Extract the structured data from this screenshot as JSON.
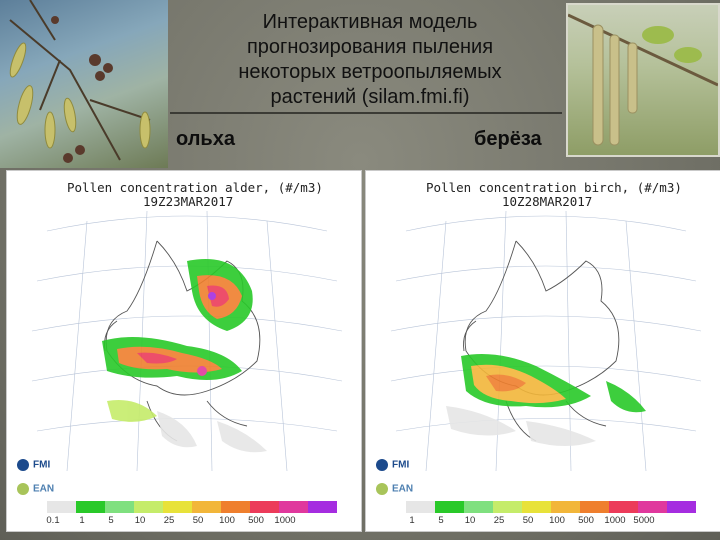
{
  "slide": {
    "title_lines": [
      "Интерактивная модель",
      "прогнозирования пыления",
      "некоторых ветроопыляемых",
      "растений (silam.fmi.fi)"
    ],
    "left_label": "ольха",
    "right_label": "берёза"
  },
  "maps": [
    {
      "title_line1": "Pollen concentration alder, (#/m3)",
      "title_line2": "19Z23MAR2017",
      "logos": [
        "FMI",
        "EAN"
      ],
      "legend_ticks": [
        "0.1",
        "1",
        "5",
        "10",
        "25",
        "50",
        "100",
        "500",
        "1000"
      ],
      "legend_colors": [
        "#e6e6e6",
        "#29c929",
        "#7fe07f",
        "#c5ec6a",
        "#e8e23a",
        "#f2b63a",
        "#ef7f2e",
        "#ec3b5a",
        "#e0389d",
        "#a52de0"
      ]
    },
    {
      "title_line1": "Pollen concentration birch, (#/m3)",
      "title_line2": "10Z28MAR2017",
      "logos": [
        "FMI",
        "EAN"
      ],
      "legend_ticks": [
        "1",
        "5",
        "10",
        "25",
        "50",
        "100",
        "500",
        "1000",
        "5000"
      ],
      "legend_colors": [
        "#e6e6e6",
        "#29c929",
        "#7fe07f",
        "#c5ec6a",
        "#e8e23a",
        "#f2b63a",
        "#ef7f2e",
        "#ec3b5a",
        "#e0389d",
        "#a52de0"
      ]
    }
  ]
}
